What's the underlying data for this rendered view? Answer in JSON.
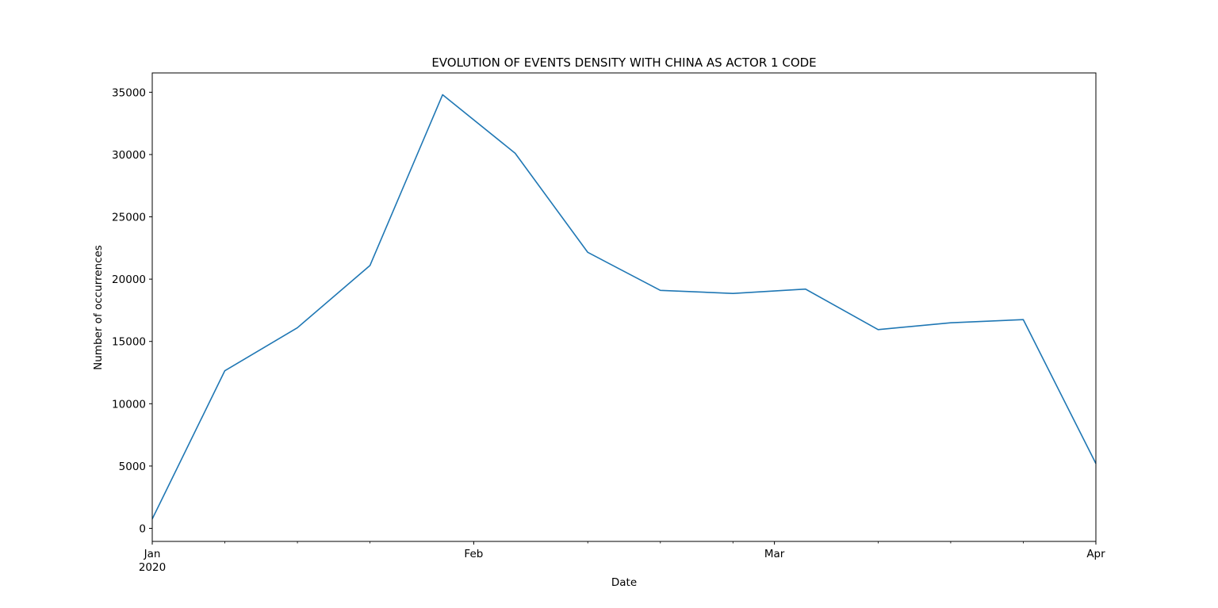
{
  "chart_data": {
    "type": "line",
    "title": "EVOLUTION OF EVENTS DENSITY WITH CHINA AS ACTOR 1 CODE",
    "xlabel": "Date",
    "ylabel": "Number of occurrences",
    "x": [
      "2020-01-01",
      "2020-01-08",
      "2020-01-15",
      "2020-01-22",
      "2020-01-29",
      "2020-02-05",
      "2020-02-12",
      "2020-02-19",
      "2020-02-26",
      "2020-03-04",
      "2020-03-11",
      "2020-03-18",
      "2020-03-25",
      "2020-04-01"
    ],
    "series": [
      {
        "values": [
          750,
          12650,
          16100,
          21100,
          34800,
          30100,
          22150,
          19100,
          18850,
          19200,
          15950,
          16500,
          16750,
          5200
        ],
        "color": "#1f77b4"
      }
    ],
    "xlim": [
      "2020-01-01",
      "2020-04-01"
    ],
    "ylim": [
      -1050,
      36550
    ],
    "yticks": [
      0,
      5000,
      10000,
      15000,
      20000,
      25000,
      30000,
      35000
    ],
    "xticks_major": [
      {
        "date": "2020-01-01",
        "label": "Jan",
        "sublabel": "2020"
      },
      {
        "date": "2020-02-01",
        "label": "Feb",
        "sublabel": ""
      },
      {
        "date": "2020-03-01",
        "label": "Mar",
        "sublabel": ""
      },
      {
        "date": "2020-04-01",
        "label": "Apr",
        "sublabel": ""
      }
    ],
    "xticks_minor": [
      "2020-01-08",
      "2020-01-15",
      "2020-01-22",
      "2020-02-12",
      "2020-02-19",
      "2020-02-26",
      "2020-03-11",
      "2020-03-18",
      "2020-03-25"
    ],
    "grid": false,
    "legend": "none"
  }
}
